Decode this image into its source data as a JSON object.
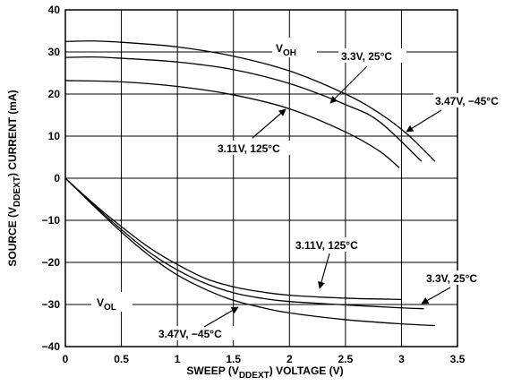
{
  "chart_data": {
    "type": "line",
    "xlabel_parts": [
      "SWEEP (V",
      "DDEXT",
      ") VOLTAGE (V)"
    ],
    "ylabel_parts": [
      "SOURCE  (V",
      "DDEXT",
      ") CURRENT (mA)"
    ],
    "xlim": [
      0,
      3.5
    ],
    "ylim": [
      -40,
      40
    ],
    "x_ticks": [
      0,
      0.5,
      1,
      1.5,
      2,
      2.5,
      3,
      3.5
    ],
    "x_tick_labels": [
      "0",
      "0.5",
      "1",
      "1.5",
      "2",
      "2.5",
      "3",
      "3.5"
    ],
    "y_ticks": [
      40,
      30,
      20,
      10,
      0,
      -10,
      -20,
      -30,
      -40
    ],
    "y_tick_labels": [
      "40",
      "30",
      "20",
      "10",
      "0",
      "−10",
      "−20",
      "−30",
      "−40"
    ],
    "grid": true,
    "series": [
      {
        "curve": "VOH-1",
        "x": [
          0,
          0.25,
          0.5,
          1,
          1.5,
          2,
          2.5,
          2.8,
          3.05,
          3.3
        ],
        "y": [
          32.5,
          32.6,
          32.3,
          31.2,
          29,
          25.5,
          20,
          15.5,
          10.5,
          4
        ]
      },
      {
        "curve": "VOH-2",
        "x": [
          0,
          0.25,
          0.5,
          1,
          1.5,
          2,
          2.5,
          2.8,
          3.18
        ],
        "y": [
          28.7,
          28.8,
          28.5,
          27.6,
          25.8,
          22.5,
          17.5,
          13.5,
          4
        ]
      },
      {
        "curve": "VOH-3",
        "x": [
          0,
          0.5,
          1,
          1.5,
          2,
          2.5,
          2.8,
          2.98
        ],
        "y": [
          23.2,
          22.9,
          21.8,
          19.8,
          16.5,
          11,
          6.5,
          2.5
        ]
      },
      {
        "curve": "VOL-1",
        "x": [
          0,
          0.25,
          0.5,
          0.75,
          1,
          1.25,
          1.5,
          1.75,
          2,
          2.5,
          3
        ],
        "y": [
          0,
          -6,
          -11.5,
          -16.5,
          -20.5,
          -23.8,
          -25.8,
          -27,
          -27.8,
          -28.5,
          -28.8
        ]
      },
      {
        "curve": "VOL-2",
        "x": [
          0,
          0.25,
          0.5,
          0.75,
          1,
          1.25,
          1.5,
          1.75,
          2,
          2.5,
          3,
          3.2
        ],
        "y": [
          0,
          -6.3,
          -12.2,
          -17.6,
          -21.8,
          -25,
          -27.2,
          -28.5,
          -29.3,
          -30.1,
          -30.8,
          -31
        ]
      },
      {
        "curve": "VOL-3",
        "x": [
          0,
          0.25,
          0.5,
          0.75,
          1,
          1.25,
          1.5,
          1.75,
          2,
          2.5,
          3,
          3.3
        ],
        "y": [
          0,
          -6.5,
          -12.8,
          -18.4,
          -23,
          -26.4,
          -29,
          -30.7,
          -32,
          -33.6,
          -34.6,
          -35
        ]
      }
    ],
    "annotations": [
      {
        "id": "voh",
        "main": "V",
        "sub": "OH"
      },
      {
        "id": "vol",
        "main": "V",
        "sub": "OL"
      },
      {
        "id": "oh-3p3",
        "text": "3.3V, 25°C"
      },
      {
        "id": "oh-3p47",
        "text": "3.47V, −45°C"
      },
      {
        "id": "oh-3p11",
        "text": "3.11V, 125°C"
      },
      {
        "id": "ol-3p11",
        "text": "3.11V, 125°C"
      },
      {
        "id": "ol-3p3",
        "text": "3.3V, 25°C"
      },
      {
        "id": "ol-3p47",
        "text": "3.47V, −45°C"
      }
    ]
  }
}
